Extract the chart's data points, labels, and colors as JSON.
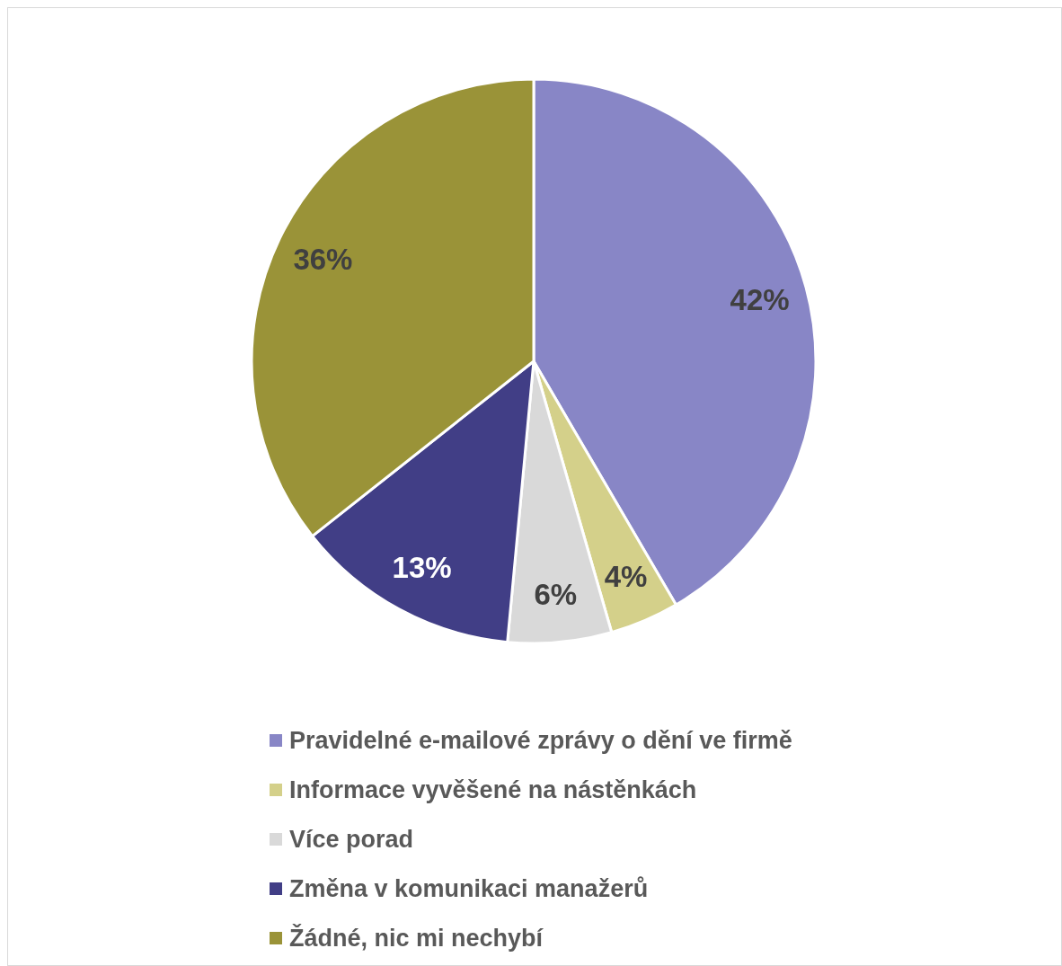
{
  "chart_data": {
    "type": "pie",
    "categories": [
      "Pravidelné e-mailové zprávy o dění ve firmě",
      "Informace vyvěšené na nástěnkách",
      "Více porad",
      "Změna v komunikaci manažerů",
      "Žádné, nic mi nechybí"
    ],
    "values": [
      42,
      4,
      6,
      13,
      36
    ],
    "value_labels": [
      "42%",
      "4%",
      "6%",
      "13%",
      "36%"
    ],
    "colors": [
      "#8886c6",
      "#d4d08a",
      "#d9d9d9",
      "#413e86",
      "#9a9338"
    ],
    "legend": "bottom"
  }
}
